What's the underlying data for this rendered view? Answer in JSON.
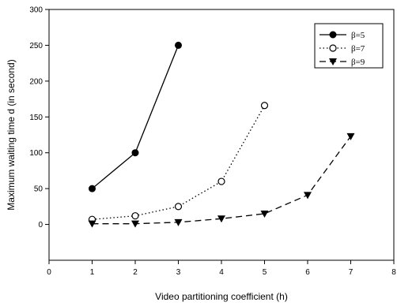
{
  "chart_data": {
    "type": "line",
    "xlabel": "Video partitioning coefficient (h)",
    "ylabel": "Maximum waiting time d (in second)",
    "xlim": [
      0,
      8
    ],
    "ylim": [
      -50,
      300
    ],
    "xticks": [
      "0",
      "1",
      "2",
      "3",
      "4",
      "5",
      "6",
      "7",
      "8"
    ],
    "yticks": [
      "0",
      "50",
      "100",
      "150",
      "200",
      "250",
      "300"
    ],
    "grid": false,
    "legend_position": "top-right",
    "series": [
      {
        "name": "β=5",
        "marker": "filled-circle",
        "line": "solid",
        "x": [
          1,
          2,
          3
        ],
        "values": [
          50,
          100,
          250
        ]
      },
      {
        "name": "β=7",
        "marker": "open-circle",
        "line": "dotted",
        "x": [
          1,
          2,
          3,
          4,
          5
        ],
        "values": [
          7,
          12,
          25,
          60,
          166
        ]
      },
      {
        "name": "β=9",
        "marker": "filled-triangle-down",
        "line": "dashed",
        "x": [
          1,
          2,
          3,
          4,
          5,
          6,
          7
        ],
        "values": [
          1,
          1,
          3,
          8,
          15,
          41,
          123
        ]
      }
    ]
  }
}
